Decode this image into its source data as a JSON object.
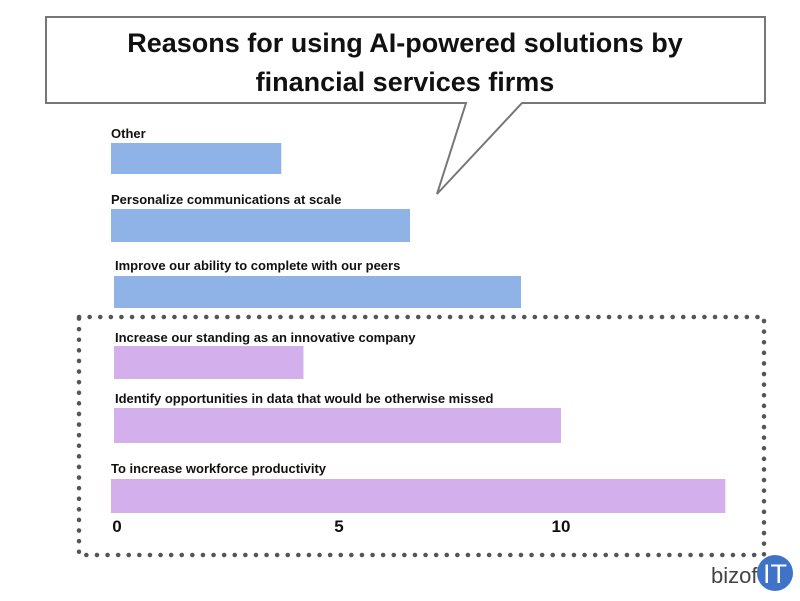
{
  "chart_data": {
    "type": "bar",
    "orientation": "horizontal",
    "title_lines": [
      "Reasons for using AI-powered solutions by",
      "financial services firms"
    ],
    "categories": [
      "Other",
      "Personalize communications at scale",
      "Improve our ability to complete with our peers",
      "Increase our standing as an innovative company",
      "Identify opportunities in data that would be otherwise missed",
      "To increase workforce productivity"
    ],
    "values": [
      3.7,
      6.6,
      9.1,
      4.2,
      10.0,
      13.7
    ],
    "bar_colors": [
      "#8fb3e6",
      "#8fb3e6",
      "#8fb3e6",
      "#d3b0ec",
      "#d3b0ec",
      "#d3b0ec"
    ],
    "highlighted_categories": [
      "Increase our standing as an innovative company",
      "Identify opportunities in data that would be otherwise missed",
      "To increase workforce productivity"
    ],
    "x_ticks": [
      0,
      5,
      10
    ],
    "xlim": [
      0,
      14
    ],
    "grid": false,
    "legend": "none"
  },
  "branding": {
    "text": "bizof",
    "accent": "IT",
    "accent_color": "#3f73c8"
  }
}
